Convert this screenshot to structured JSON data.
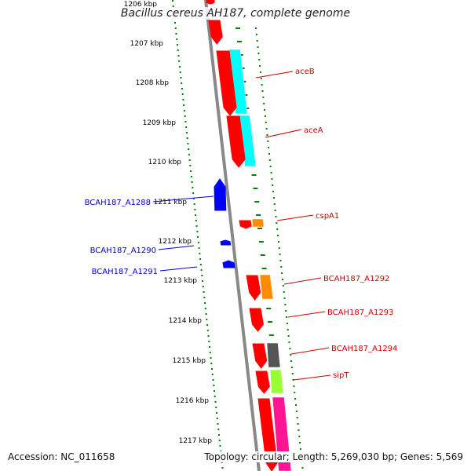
{
  "title": "Bacillus cereus AH187, complete genome",
  "footer": {
    "accession": "Accession: NC_011658",
    "topology": "Topology: circular; Length: 5,269,030 bp; Genes: 5,569"
  },
  "ruler": {
    "labels": [
      "1206 kbp",
      "1207 kbp",
      "1208 kbp",
      "1209 kbp",
      "1210 kbp",
      "1211 kbp",
      "1212 kbp",
      "1213 kbp",
      "1214 kbp",
      "1215 kbp",
      "1216 kbp",
      "1217 kbp"
    ]
  },
  "genes": [
    {
      "label": "aceB",
      "color": "#ff0000",
      "strand": "reverse",
      "cog_color": "#00ffff"
    },
    {
      "label": "aceA",
      "color": "#ff0000",
      "strand": "reverse",
      "cog_color": "#00ffff"
    },
    {
      "label": "BCAH187_A1288",
      "color": "#0000ff",
      "strand": "forward"
    },
    {
      "label": "cspA1",
      "color": "#ff0000",
      "strand": "reverse",
      "cog_color": "#ff8c00"
    },
    {
      "label": "BCAH187_A1290",
      "color": "#0000ff",
      "strand": "forward"
    },
    {
      "label": "BCAH187_A1291",
      "color": "#0000ff",
      "strand": "forward"
    },
    {
      "label": "BCAH187_A1292",
      "color": "#ff0000",
      "strand": "reverse",
      "cog_color": "#ff8c00"
    },
    {
      "label": "BCAH187_A1293",
      "color": "#ff0000",
      "strand": "reverse"
    },
    {
      "label": "BCAH187_A1294",
      "color": "#ff0000",
      "strand": "reverse",
      "cog_color": "#555555"
    },
    {
      "label": "sipT",
      "color": "#ff0000",
      "strand": "reverse",
      "cog_color": "#99ff33"
    }
  ],
  "colors": {
    "backbone": "#888888",
    "gc_dots": "#008000",
    "label_forward": "#0000cc",
    "label_reverse": "#cc0000"
  }
}
